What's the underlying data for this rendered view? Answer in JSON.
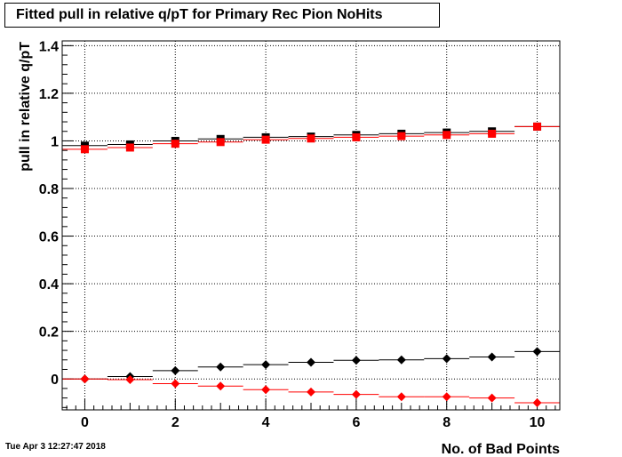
{
  "chart_data": {
    "type": "scatter",
    "title": "Fitted pull in relative q/pT for Primary Rec Pion NoHits",
    "xlabel": "No. of Bad Points",
    "ylabel": "pull in relative q/pT",
    "xlim": [
      -0.5,
      10.5
    ],
    "ylim": [
      -0.13,
      1.42
    ],
    "x_ticks": [
      0,
      2,
      4,
      6,
      8,
      10
    ],
    "x_tick_labels": [
      "0",
      "2",
      "4",
      "6",
      "8",
      "10"
    ],
    "y_ticks": [
      0,
      0.2,
      0.4,
      0.6,
      0.8,
      1,
      1.2,
      1.4
    ],
    "y_tick_labels": [
      "0",
      "0.2",
      "0.4",
      "0.6",
      "0.8",
      "1",
      "1.2",
      "1.4"
    ],
    "grid": true,
    "series": [
      {
        "marker": "square",
        "color": "#000000",
        "x": [
          0,
          1,
          2,
          3,
          4,
          5,
          6,
          7,
          8,
          9,
          10
        ],
        "values": [
          0.98,
          0.985,
          1.0,
          1.008,
          1.015,
          1.018,
          1.025,
          1.03,
          1.035,
          1.04,
          1.06
        ]
      },
      {
        "marker": "square",
        "color": "#ff0000",
        "x": [
          0,
          1,
          2,
          3,
          4,
          5,
          6,
          7,
          8,
          9,
          10
        ],
        "values": [
          0.965,
          0.972,
          0.988,
          0.995,
          1.005,
          1.01,
          1.015,
          1.02,
          1.025,
          1.03,
          1.06
        ]
      },
      {
        "marker": "diamond",
        "color": "#000000",
        "x": [
          0,
          1,
          2,
          3,
          4,
          5,
          6,
          7,
          8,
          9,
          10
        ],
        "values": [
          0.0,
          0.01,
          0.035,
          0.05,
          0.06,
          0.07,
          0.078,
          0.08,
          0.085,
          0.092,
          0.115
        ]
      },
      {
        "marker": "diamond",
        "color": "#ff0000",
        "x": [
          0,
          1,
          2,
          3,
          4,
          5,
          6,
          7,
          8,
          9,
          10
        ],
        "values": [
          0.0,
          -0.003,
          -0.02,
          -0.03,
          -0.045,
          -0.055,
          -0.065,
          -0.075,
          -0.075,
          -0.08,
          -0.1
        ]
      }
    ]
  },
  "footer": {
    "timestamp": "Tue Apr  3 12:27:47 2018"
  }
}
